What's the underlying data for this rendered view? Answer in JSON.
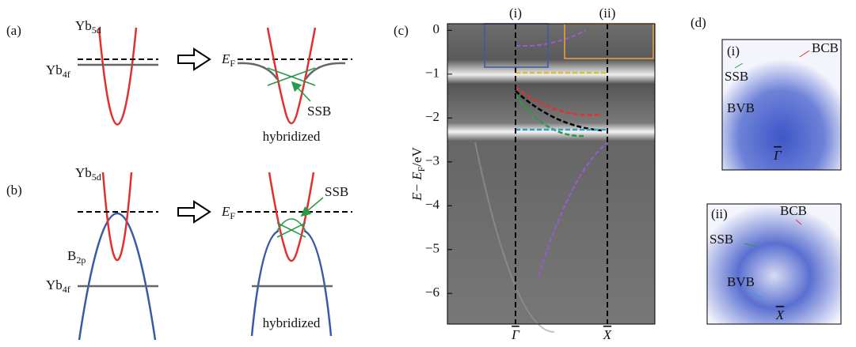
{
  "panel_a": {
    "label": "(a)",
    "upper_band": {
      "base": "Yb",
      "sub": "5d"
    },
    "lower_band": {
      "base": "Yb",
      "sub": "4f"
    },
    "fermi": {
      "base": "E",
      "sub": "F"
    },
    "state": "SSB",
    "result": "hybridized"
  },
  "panel_b": {
    "label": "(b)",
    "upper_band": {
      "base": "Yb",
      "sub": "5d"
    },
    "valence_band": {
      "base": "B",
      "sub": "2p"
    },
    "lower_band": {
      "base": "Yb",
      "sub": "4f"
    },
    "fermi": {
      "base": "E",
      "sub": "F"
    },
    "state": "SSB",
    "result": "hybridized"
  },
  "panel_c": {
    "label": "(c)",
    "axis_label": {
      "base": "E− E",
      "sub": "F",
      "rest": "/eV"
    },
    "ylim": [
      -6.7,
      0.15
    ],
    "yticks": [
      0,
      {
        "value": -1,
        "label": "−1"
      },
      {
        "value": -2,
        "label": "−2"
      },
      {
        "value": -3,
        "label": "−3"
      },
      {
        "value": -4,
        "label": "−4"
      },
      {
        "value": -5,
        "label": "−5"
      },
      {
        "value": -6,
        "label": "−6"
      }
    ],
    "x_points": [
      "Γ",
      "X"
    ],
    "boxes": [
      "(i)",
      "(ii)"
    ]
  },
  "panel_d": {
    "label": "(d)",
    "insets": [
      {
        "label": "(i)",
        "conduction": "BCB",
        "surface": "SSB",
        "valence": "BVB",
        "point": "Γ"
      },
      {
        "label": "(ii)",
        "conduction": "BCB",
        "surface": "SSB",
        "valence": "BVB",
        "point": "X"
      }
    ]
  }
}
